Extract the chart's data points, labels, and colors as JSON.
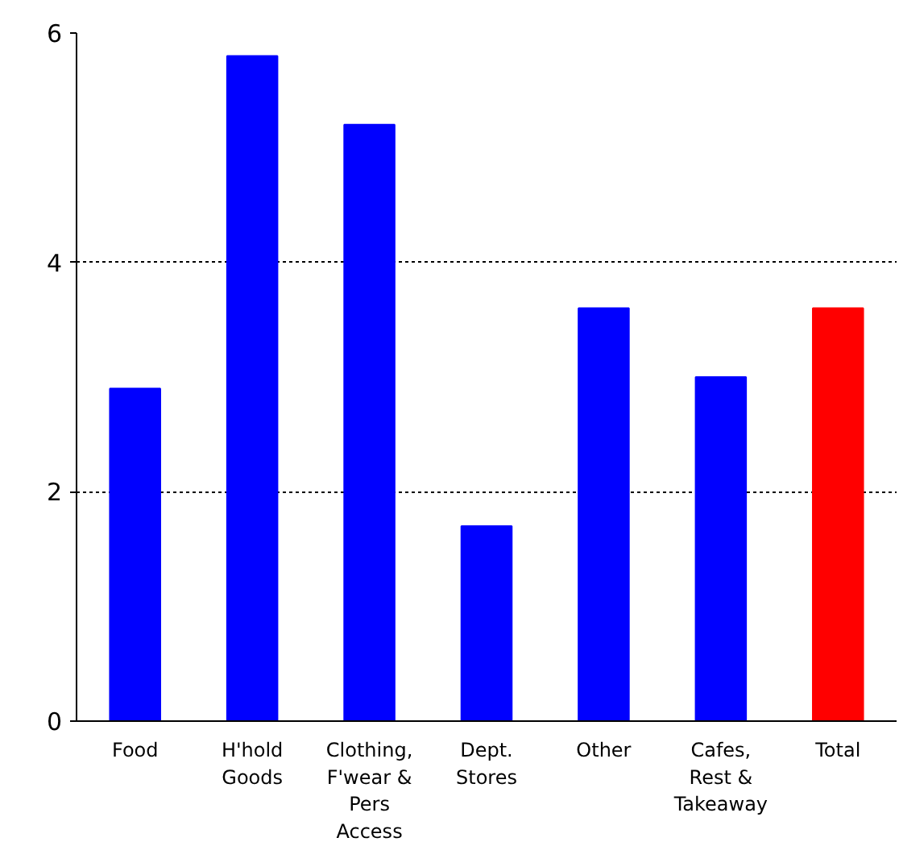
{
  "chart_data": {
    "type": "bar",
    "categories": [
      "Food",
      "H'hold Goods",
      "Clothing, F'wear & Pers Access",
      "Dept. Stores",
      "Other",
      "Cafes, Rest & Takeaway",
      "Total"
    ],
    "values": [
      2.9,
      5.8,
      5.2,
      1.7,
      3.6,
      3.0,
      3.6
    ],
    "colors": [
      "#0000ff",
      "#0000ff",
      "#0000ff",
      "#0000ff",
      "#0000ff",
      "#0000ff",
      "#ff0000"
    ],
    "ylim": [
      0,
      6
    ],
    "yticks": [
      0,
      2,
      4,
      6
    ],
    "grid": "y"
  }
}
